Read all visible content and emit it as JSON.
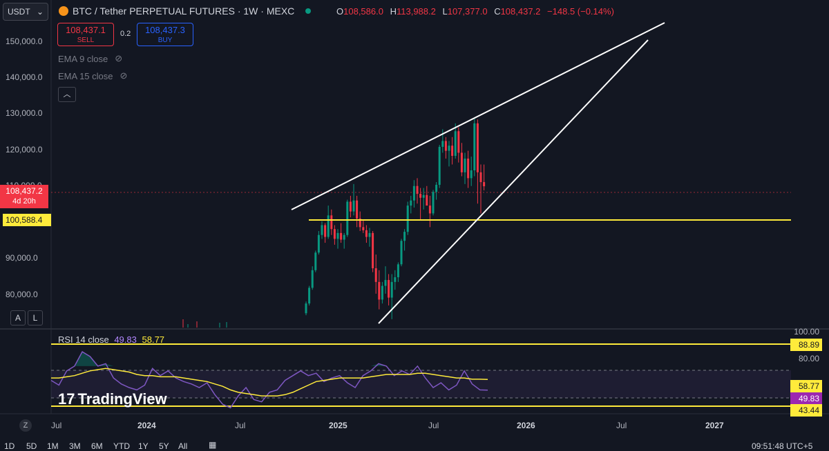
{
  "header": {
    "symbol_selector": "USDT",
    "title": "BTC / Tether PERPETUAL FUTURES · 1W · MEXC",
    "ohlc": {
      "o_label": "O",
      "o": "108,586.0",
      "h_label": "H",
      "h": "113,988.2",
      "l_label": "L",
      "l": "107,377.0",
      "c_label": "C",
      "c": "108,437.2",
      "change": "−148.5 (−0.14%)"
    },
    "change_color": "#f23645"
  },
  "trade": {
    "sell_price": "108,437.1",
    "sell_label": "SELL",
    "spread": "0.2",
    "buy_price": "108,437.3",
    "buy_label": "BUY"
  },
  "indicators": {
    "ema1": "EMA 9 close",
    "ema2": "EMA 15 close",
    "collapse_icon": "chevron-up-icon"
  },
  "price_scale": {
    "labels": [
      "150,000.0",
      "140,000.0",
      "130,000.0",
      "120,000.0",
      "110,000.0",
      "90,000.0",
      "80,000.0"
    ],
    "current_price": "108,437.2",
    "countdown": "4d 20h",
    "support_label": "100,588.4"
  },
  "scale_buttons": {
    "auto": "A",
    "log": "L"
  },
  "rsi": {
    "label": "RSI 14 close",
    "value": "49.83",
    "ma_value": "58.77",
    "scale": [
      "100.00",
      "80.00"
    ],
    "badges": {
      "upper": "88.89",
      "ma": "58.77",
      "rsi": "49.83",
      "lower": "43.44"
    }
  },
  "watermark": "TradingView",
  "time_axis": [
    "Jul",
    "2024",
    "Jul",
    "2025",
    "Jul",
    "2026",
    "Jul",
    "2027"
  ],
  "timezone_button": "Z",
  "bottom_bar": {
    "ranges": [
      "1D",
      "5D",
      "1M",
      "3M",
      "6M",
      "YTD",
      "1Y",
      "5Y",
      "All"
    ],
    "clock": "09:51:48 UTC+5"
  },
  "colors": {
    "up": "#089981",
    "down": "#f23645",
    "support": "#ffeb3b",
    "rsi_line": "#7e57c2",
    "rsi_ma": "#ffeb3b"
  },
  "chart_data": {
    "type": "candlestick",
    "title": "BTC / Tether PERPETUAL FUTURES · 1W · MEXC",
    "ylim": [
      72000,
      156000
    ],
    "series": [
      {
        "values": [
          [
            76000,
            79000,
            75500,
            78500
          ],
          [
            78500,
            83000,
            78000,
            82500
          ],
          [
            82500,
            88000,
            82000,
            87000
          ],
          [
            87000,
            92000,
            86500,
            91500
          ],
          [
            91500,
            97000,
            91000,
            96000
          ],
          [
            96000,
            99500,
            95000,
            98500
          ],
          [
            98500,
            99000,
            94000,
            95500
          ],
          [
            95500,
            103500,
            95000,
            101000
          ],
          [
            101000,
            102500,
            96000,
            97500
          ],
          [
            97500,
            98500,
            93500,
            95000
          ],
          [
            95000,
            97500,
            92500,
            96500
          ],
          [
            96500,
            99000,
            94000,
            94800
          ],
          [
            94800,
            96500,
            92500,
            96000
          ],
          [
            96000,
            105000,
            95500,
            104500
          ],
          [
            104500,
            106000,
            100500,
            102000
          ],
          [
            102000,
            109000,
            101000,
            104800
          ],
          [
            104800,
            106000,
            98000,
            100200
          ],
          [
            100200,
            102000,
            97000,
            98000
          ],
          [
            98000,
            100000,
            96500,
            97200
          ],
          [
            97200,
            98500,
            94000,
            95500
          ],
          [
            95500,
            97800,
            93000,
            96500
          ],
          [
            96500,
            97000,
            86500,
            87500
          ],
          [
            87500,
            91000,
            81000,
            84000
          ],
          [
            84000,
            87000,
            77000,
            79500
          ],
          [
            79500,
            84000,
            78500,
            83000
          ],
          [
            83000,
            88000,
            81000,
            84500
          ],
          [
            84500,
            86000,
            78000,
            80000
          ],
          [
            80000,
            86000,
            74500,
            84000
          ],
          [
            84000,
            87000,
            82000,
            85200
          ],
          [
            85200,
            89000,
            84000,
            88500
          ],
          [
            88500,
            95000,
            88000,
            94500
          ],
          [
            94500,
            97500,
            92000,
            96800
          ],
          [
            96800,
            104500,
            96000,
            103500
          ],
          [
            103500,
            106000,
            101500,
            104800
          ],
          [
            104800,
            110000,
            103000,
            108500
          ],
          [
            108500,
            110500,
            104000,
            106500
          ],
          [
            106500,
            108000,
            100000,
            105500
          ],
          [
            105500,
            108000,
            102500,
            106200
          ],
          [
            106200,
            108500,
            104000,
            103500
          ],
          [
            103500,
            106000,
            98000,
            101500
          ],
          [
            101500,
            107500,
            101000,
            107000
          ],
          [
            107000,
            109500,
            105000,
            108800
          ],
          [
            108800,
            119000,
            108000,
            118500
          ],
          [
            118500,
            123000,
            117000,
            120000
          ],
          [
            120000,
            121000,
            115500,
            117500
          ],
          [
            117500,
            120000,
            113500,
            118800
          ],
          [
            118800,
            121000,
            114000,
            116200
          ],
          [
            116200,
            124500,
            115500,
            122500
          ],
          [
            122500,
            123500,
            114500,
            117000
          ],
          [
            117000,
            119500,
            111000,
            112000
          ],
          [
            112000,
            117000,
            109000,
            115500
          ],
          [
            115500,
            117500,
            108000,
            110500
          ],
          [
            110500,
            116000,
            108500,
            112500
          ],
          [
            112500,
            126000,
            111000,
            124500
          ],
          [
            124500,
            125500,
            104000,
            112000
          ],
          [
            112000,
            114000,
            101500,
            109500
          ],
          [
            109500,
            113988.2,
            107377,
            108437.2
          ]
        ]
      }
    ],
    "trendlines": [
      {
        "name": "upper wedge",
        "points": [
          [
            "2024-11",
            100000
          ],
          [
            "2026-07",
            156000
          ]
        ]
      },
      {
        "name": "lower wedge",
        "points": [
          [
            "2025-03",
            75000
          ],
          [
            "2026-06",
            151000
          ]
        ]
      }
    ],
    "support": 100588.4,
    "current": 108437.2,
    "rsi": {
      "ylim": [
        30,
        100
      ],
      "levels": [
        88.89,
        43.44
      ],
      "band": [
        70,
        50
      ],
      "rsi_values": [
        58,
        54,
        66,
        70,
        82,
        78,
        70,
        72,
        60,
        55,
        52,
        50,
        54,
        68,
        62,
        66,
        60,
        57,
        55,
        52,
        56,
        46,
        38,
        35,
        45,
        52,
        42,
        40,
        48,
        50,
        58,
        62,
        66,
        62,
        64,
        57,
        60,
        62,
        56,
        52,
        62,
        66,
        72,
        70,
        62,
        66,
        63,
        70,
        60,
        52,
        56,
        50,
        54,
        66,
        55,
        50,
        49.83
      ],
      "ma_values": [
        60,
        60,
        61,
        62,
        64,
        66,
        67,
        68,
        67,
        66,
        65,
        63,
        62,
        62,
        61,
        61,
        61,
        60,
        59,
        58,
        57,
        55,
        53,
        50,
        48,
        47,
        46,
        45,
        45,
        45,
        46,
        48,
        51,
        54,
        57,
        58,
        59,
        60,
        60,
        60,
        60,
        61,
        62,
        63,
        63,
        63,
        63,
        64,
        64,
        63,
        62,
        61,
        60,
        60,
        59,
        59,
        58.77
      ]
    }
  }
}
